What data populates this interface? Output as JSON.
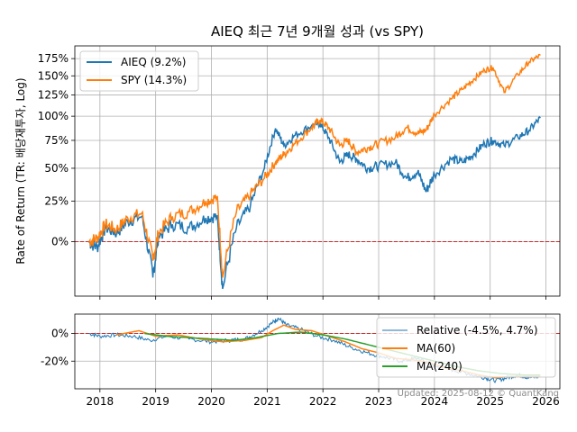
{
  "chart_data": [
    {
      "type": "line",
      "title": "AIEQ 최근 7년 9개월 성과 (vs SPY)",
      "ylabel": "Rate of Return (TR: 배당재투자, Log)",
      "xlabel": "",
      "y_scale": "log(1+r)",
      "ylim": [
        -26,
        195
      ],
      "grid": true,
      "legend_placement": "upper-left",
      "y_ticks": [
        0,
        25,
        50,
        75,
        100,
        125,
        150,
        175
      ],
      "y_tick_labels": [
        "0%",
        "25%",
        "50%",
        "75%",
        "100%",
        "125%",
        "150%",
        "175%"
      ],
      "x_ticks": [
        "2018",
        "2019",
        "2020",
        "2021",
        "2022",
        "2023",
        "2024",
        "2025",
        "2026"
      ],
      "reference_line": {
        "y": 0,
        "color": "#d62728",
        "style": "dashed"
      },
      "series": [
        {
          "name": "AIEQ (9.2%)",
          "color": "#1f77b4",
          "x": [
            2017.8,
            2017.95,
            2018.1,
            2018.3,
            2018.5,
            2018.75,
            2018.95,
            2019.05,
            2019.3,
            2019.6,
            2019.9,
            2020.1,
            2020.2,
            2020.45,
            2020.7,
            2020.95,
            2021.15,
            2021.3,
            2021.5,
            2021.8,
            2021.95,
            2022.1,
            2022.3,
            2022.45,
            2022.6,
            2022.8,
            2023.0,
            2023.3,
            2023.5,
            2023.7,
            2023.85,
            2024.0,
            2024.3,
            2024.5,
            2024.7,
            2024.9,
            2025.05,
            2025.25,
            2025.5,
            2025.7,
            2025.9
          ],
          "values": [
            0,
            -3,
            8,
            5,
            12,
            15,
            -18,
            3,
            10,
            8,
            14,
            15,
            -23,
            8,
            22,
            50,
            87,
            70,
            80,
            90,
            92,
            78,
            55,
            62,
            58,
            50,
            52,
            55,
            42,
            47,
            32,
            45,
            58,
            55,
            62,
            72,
            75,
            70,
            78,
            85,
            98
          ]
        },
        {
          "name": "SPY (14.3%)",
          "color": "#ff7f0e",
          "x": [
            2017.8,
            2017.95,
            2018.1,
            2018.3,
            2018.5,
            2018.75,
            2018.95,
            2019.05,
            2019.3,
            2019.6,
            2019.9,
            2020.1,
            2020.2,
            2020.45,
            2020.7,
            2020.95,
            2021.15,
            2021.3,
            2021.5,
            2021.8,
            2021.95,
            2022.1,
            2022.3,
            2022.45,
            2022.6,
            2022.8,
            2023.0,
            2023.3,
            2023.5,
            2023.7,
            2023.85,
            2024.0,
            2024.3,
            2024.5,
            2024.7,
            2024.9,
            2025.05,
            2025.25,
            2025.5,
            2025.7,
            2025.9
          ],
          "values": [
            0,
            2,
            10,
            7,
            14,
            17,
            -10,
            5,
            15,
            18,
            25,
            28,
            -18,
            18,
            30,
            42,
            55,
            62,
            72,
            88,
            96,
            88,
            70,
            75,
            64,
            68,
            72,
            78,
            88,
            82,
            85,
            102,
            120,
            132,
            145,
            158,
            162,
            128,
            152,
            170,
            180
          ]
        }
      ]
    },
    {
      "type": "line",
      "ylabel": "",
      "ylim": [
        -40,
        14
      ],
      "grid": true,
      "legend_placement": "upper-right",
      "y_ticks": [
        0,
        -20
      ],
      "y_tick_labels": [
        "0%",
        "-20%"
      ],
      "x_ticks": [
        "2018",
        "2019",
        "2020",
        "2021",
        "2022",
        "2023",
        "2024",
        "2025",
        "2026"
      ],
      "reference_line": {
        "y": 0,
        "color": "#d62728",
        "style": "dashed"
      },
      "series": [
        {
          "name": "Relative (-4.5%, 4.7%)",
          "color": "#1f77b4",
          "x": [
            2017.8,
            2018.0,
            2018.3,
            2018.6,
            2018.9,
            2019.2,
            2019.6,
            2020.0,
            2020.3,
            2020.6,
            2020.9,
            2021.1,
            2021.2,
            2021.35,
            2021.6,
            2021.9,
            2022.2,
            2022.5,
            2022.8,
            2023.1,
            2023.4,
            2023.7,
            2024.0,
            2024.3,
            2024.6,
            2024.9,
            2025.1,
            2025.3,
            2025.5,
            2025.7,
            2025.9
          ],
          "values": [
            0,
            -2,
            -1,
            -2,
            -5,
            -2,
            -4,
            -6,
            -5,
            -4,
            2,
            8,
            11,
            6,
            3,
            -2,
            -5,
            -10,
            -14,
            -17,
            -20,
            -18,
            -24,
            -26,
            -29,
            -32,
            -34,
            -32,
            -30,
            -32,
            -31
          ]
        },
        {
          "name": "MA(60)",
          "color": "#ff7f0e",
          "x": [
            2018.3,
            2018.7,
            2019.0,
            2019.4,
            2019.8,
            2020.2,
            2020.6,
            2020.9,
            2021.1,
            2021.3,
            2021.5,
            2021.8,
            2022.1,
            2022.4,
            2022.7,
            2023.0,
            2023.3,
            2023.6,
            2023.9,
            2024.2,
            2024.5,
            2024.8,
            2025.1,
            2025.4,
            2025.7,
            2025.9
          ],
          "values": [
            -1,
            2,
            -2,
            -1,
            -4,
            -6,
            -5,
            -3,
            2,
            6,
            3,
            2,
            -2,
            -6,
            -11,
            -14,
            -18,
            -19,
            -21,
            -25,
            -27,
            -30,
            -32,
            -31,
            -31,
            -31
          ]
        },
        {
          "name": "MA(240)",
          "color": "#2ca02c",
          "x": [
            2018.8,
            2019.2,
            2019.6,
            2020.0,
            2020.4,
            2020.8,
            2021.2,
            2021.6,
            2022.0,
            2022.4,
            2022.8,
            2023.2,
            2023.6,
            2024.0,
            2024.4,
            2024.8,
            2025.2,
            2025.6,
            2025.9
          ],
          "values": [
            0,
            -2,
            -3,
            -4,
            -5,
            -3,
            0,
            1,
            -1,
            -4,
            -8,
            -12,
            -16,
            -20,
            -24,
            -27,
            -29,
            -30,
            -30
          ]
        }
      ],
      "annotation": "Updated: 2025-08-12 © QuantKang"
    }
  ]
}
